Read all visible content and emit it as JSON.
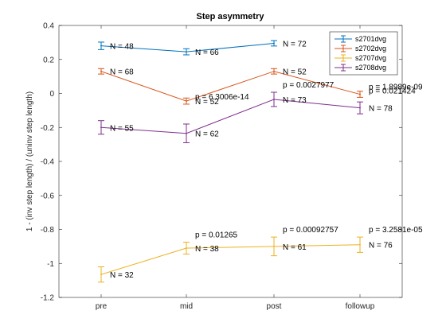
{
  "chart_data": {
    "type": "line",
    "title": "Step asymmetry",
    "xlabel": "",
    "ylabel": "1 - (inv step length) / (uninv step length)",
    "categories": [
      "pre",
      "mid",
      "post",
      "followup"
    ],
    "ylim": [
      -1.2,
      0.4
    ],
    "yticks": [
      -1.2,
      -1,
      -0.8,
      -0.6,
      -0.4,
      -0.2,
      0,
      0.2,
      0.4
    ],
    "ytick_labels": [
      "-1.2",
      "-1",
      "-0.8",
      "-0.6",
      "-0.4",
      "-0.2",
      "0",
      "0.2",
      "0.4"
    ],
    "legend_position": "top-right",
    "grid": false,
    "series": [
      {
        "name": "s2701dvg",
        "color": "#0072BD",
        "values": [
          0.28,
          0.245,
          0.295,
          null
        ],
        "errors": [
          0.022,
          0.018,
          0.016,
          null
        ],
        "n_labels": [
          "N = 48",
          "N = 66",
          "N = 72",
          ""
        ],
        "p_labels": [
          "",
          "",
          "",
          ""
        ]
      },
      {
        "name": "s2702dvg",
        "color": "#D95319",
        "values": [
          0.13,
          -0.045,
          0.13,
          -0.005
        ],
        "errors": [
          0.016,
          0.018,
          0.016,
          0.018
        ],
        "n_labels": [
          "N = 68",
          "N = 52",
          "N = 52",
          ""
        ],
        "p_labels": [
          "",
          "p = 6.3006e-14",
          "",
          "p = 1.8989e-09"
        ]
      },
      {
        "name": "s2707dvg",
        "color": "#EDB120",
        "values": [
          -1.065,
          -0.91,
          -0.9,
          -0.89
        ],
        "errors": [
          0.045,
          0.035,
          0.055,
          0.045
        ],
        "n_labels": [
          "N = 32",
          "N = 38",
          "N = 61",
          "N = 76"
        ],
        "p_labels": [
          "",
          "p = 0.01265",
          "p = 0.00092757",
          "p = 3.2581e-05"
        ]
      },
      {
        "name": "s2708dvg",
        "color": "#7E2F8E",
        "values": [
          -0.2,
          -0.235,
          -0.035,
          -0.085
        ],
        "errors": [
          0.04,
          0.055,
          0.042,
          0.035
        ],
        "n_labels": [
          "N = 55",
          "N = 62",
          "N = 73",
          "N = 78"
        ],
        "p_labels": [
          "",
          "",
          "p = 0.0027977",
          "p = 0.021424"
        ]
      }
    ]
  }
}
